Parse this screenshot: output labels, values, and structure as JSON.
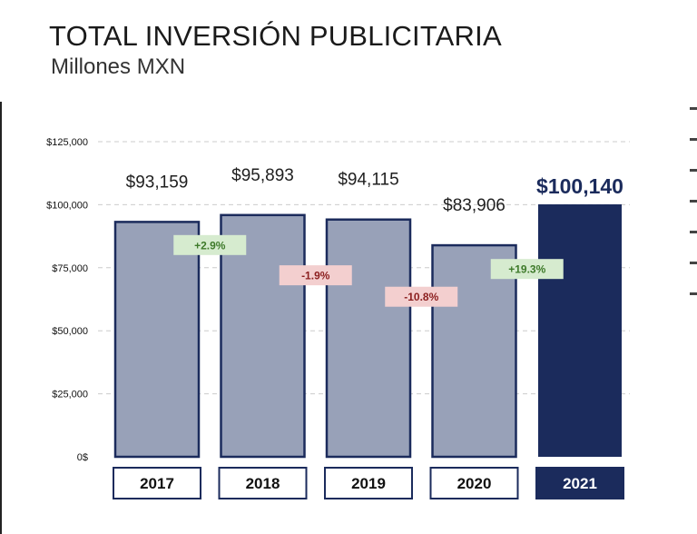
{
  "header": {
    "title": "TOTAL INVERSIÓN PUBLICITARIA",
    "subtitle": "Millones MXN"
  },
  "colors": {
    "bar_fill": "#98a1b8",
    "bar_stroke": "#1b2b5c",
    "highlight": "#1b2b5c",
    "positive_bg": "#d6ebcf",
    "positive_text": "#3e7a2a",
    "negative_bg": "#f3cfcf",
    "negative_text": "#8b1f1f",
    "grid": "#cccccc"
  },
  "chart_data": {
    "type": "bar",
    "categories": [
      "2017",
      "2018",
      "2019",
      "2020",
      "2021"
    ],
    "values": [
      93159,
      95893,
      94115,
      83906,
      100140
    ],
    "value_labels": [
      "$93,159",
      "$95,893",
      "$94,115",
      "$83,906",
      "$100,140"
    ],
    "highlighted_category": "2021",
    "y_ticks": [
      0,
      25000,
      50000,
      75000,
      100000,
      125000
    ],
    "y_tick_labels": [
      "0$",
      "$25,000",
      "$50,000",
      "$75,000",
      "$100,000",
      "$125,000"
    ],
    "ylim": [
      0,
      125000
    ],
    "grid": true,
    "changes": [
      {
        "label": "+2.9%",
        "sign": "positive",
        "between": [
          "2017",
          "2018"
        ],
        "level": 84000
      },
      {
        "label": "-1.9%",
        "sign": "negative",
        "between": [
          "2018",
          "2019"
        ],
        "level": 72000
      },
      {
        "label": "-10.8%",
        "sign": "negative",
        "between": [
          "2019",
          "2020"
        ],
        "level": 63500
      },
      {
        "label": "+19.3%",
        "sign": "positive",
        "between": [
          "2020",
          "2021"
        ],
        "level": 74500
      }
    ]
  }
}
